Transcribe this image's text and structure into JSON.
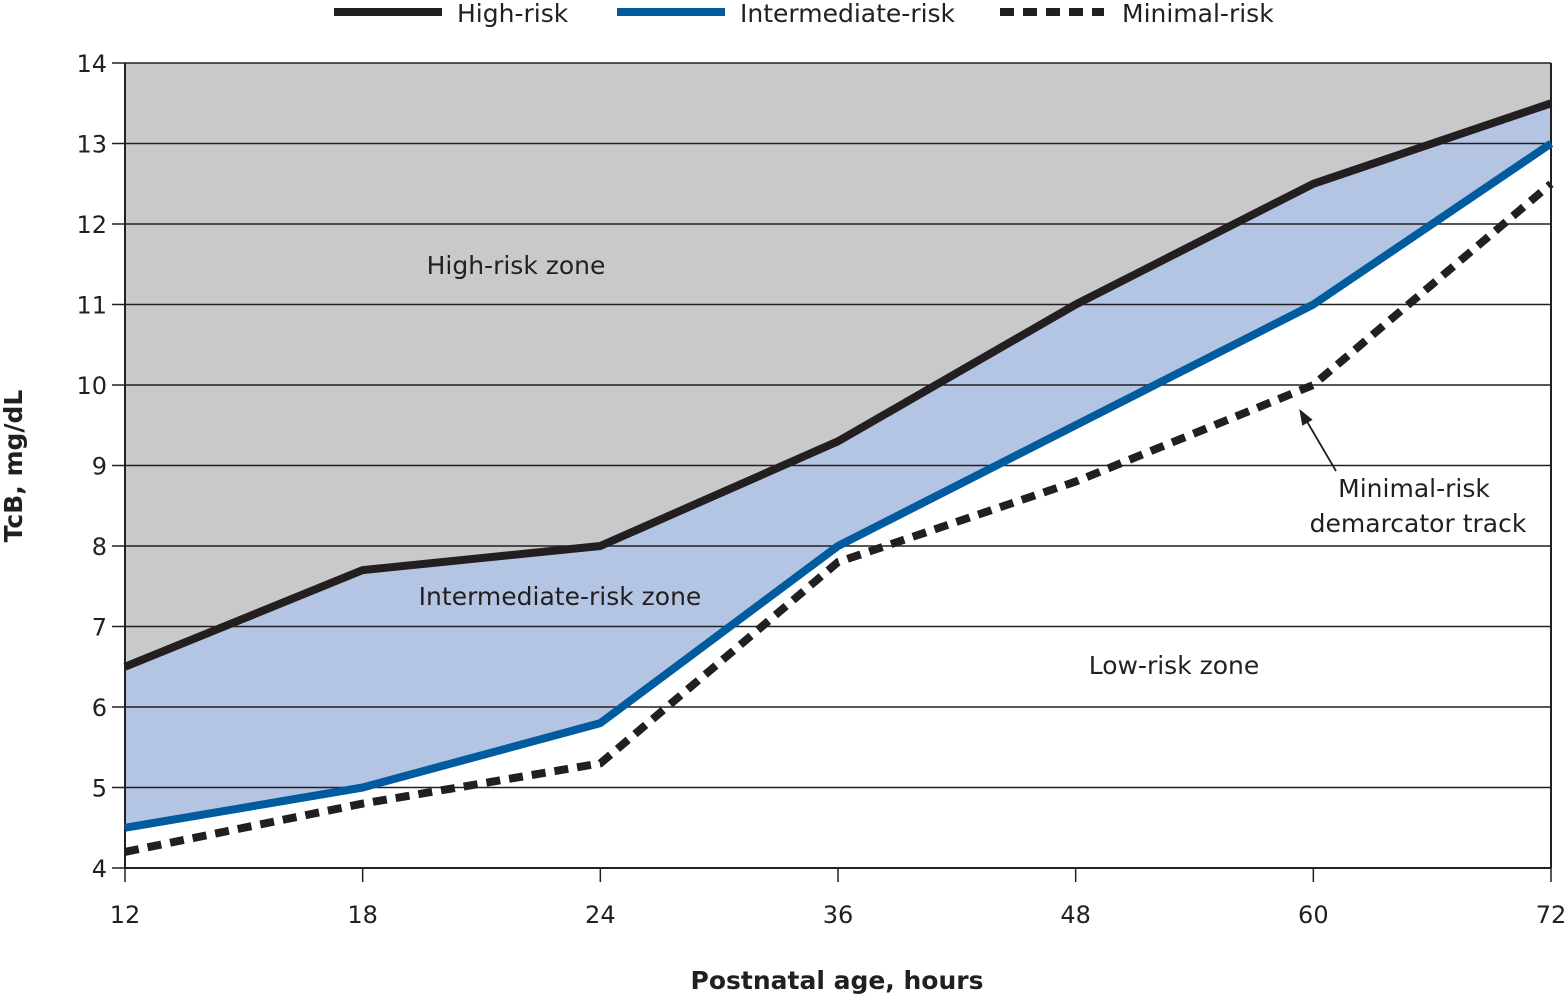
{
  "chart_data": {
    "type": "line",
    "title": "",
    "xlabel": "Postnatal age, hours",
    "ylabel": "TcB, mg/dL",
    "categories": [
      "12",
      "18",
      "24",
      "36",
      "48",
      "60",
      "72"
    ],
    "x": [
      12,
      18,
      24,
      36,
      48,
      60,
      72
    ],
    "ylim": [
      4,
      14
    ],
    "yticks": [
      4,
      5,
      6,
      7,
      8,
      9,
      10,
      11,
      12,
      13,
      14
    ],
    "grid": true,
    "legend_position": "top",
    "series": [
      {
        "name": "High-risk",
        "values": [
          6.5,
          7.7,
          8.0,
          9.3,
          11.0,
          12.5,
          13.5
        ],
        "color": "#231f20",
        "style": "solid"
      },
      {
        "name": "Intermediate-risk",
        "values": [
          4.5,
          5.0,
          5.8,
          8.0,
          9.5,
          11.0,
          13.0
        ],
        "color": "#005c9e",
        "style": "solid"
      },
      {
        "name": "Minimal-risk",
        "values": [
          4.2,
          4.8,
          5.3,
          7.8,
          8.8,
          10.0,
          12.5
        ],
        "color": "#231f20",
        "style": "dashed"
      }
    ],
    "zones": {
      "high": {
        "label": "High-risk zone",
        "color": "#c8c9cb"
      },
      "intermediate": {
        "label": "Intermediate-risk zone",
        "color": "#b4c5e4"
      },
      "low": {
        "label": "Low-risk zone",
        "color": "#ffffff"
      }
    },
    "annotation": {
      "lines": [
        "Minimal-risk",
        "demarcator track"
      ],
      "points_to": {
        "x": 60,
        "y": 10.0
      }
    }
  }
}
